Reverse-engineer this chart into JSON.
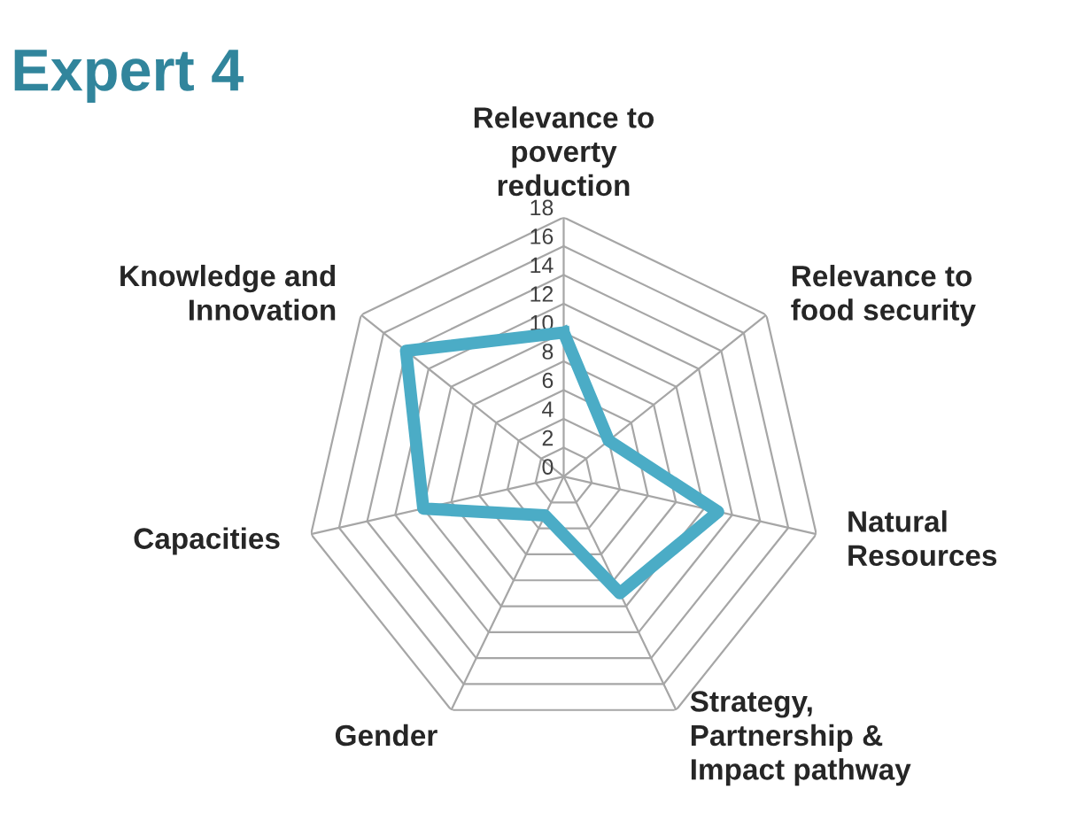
{
  "chart_data": {
    "type": "radar",
    "title": "Expert 4",
    "categories": [
      "Relevance to\npoverty\nreduction",
      "Relevance to\nfood security",
      "Natural\nResources",
      "Strategy,\nPartnership &\nImpact pathway",
      "Gender",
      "Capacities",
      "Knowledge and\nInnovation"
    ],
    "series": [
      {
        "color": "#4bacc6",
        "values": [
          10,
          4,
          11,
          9,
          3,
          10,
          14
        ]
      }
    ],
    "ylim": [
      0,
      18
    ],
    "yticks": [
      0,
      2,
      4,
      6,
      8,
      10,
      12,
      14,
      16,
      18
    ],
    "grid": true,
    "marker": "none",
    "line_style": "solid"
  }
}
